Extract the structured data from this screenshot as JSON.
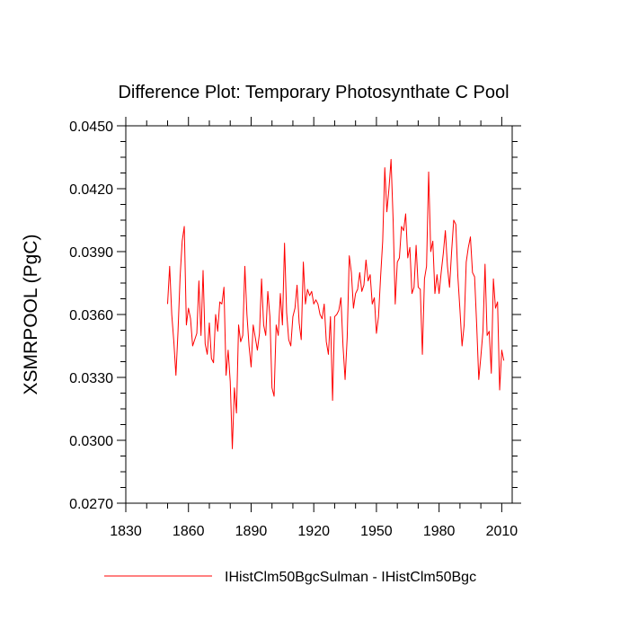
{
  "chart_data": {
    "type": "line",
    "title": "Difference Plot: Temporary Photosynthate C Pool",
    "xlabel": "",
    "ylabel": "XSMRPOOL  (PgC)",
    "xlim": [
      1830,
      2015
    ],
    "ylim": [
      0.027,
      0.045
    ],
    "xticks": [
      1830,
      1860,
      1890,
      1920,
      1950,
      1980,
      2010
    ],
    "xtick_labels": [
      "1830",
      "1860",
      "1890",
      "1920",
      "1950",
      "1980",
      "2010"
    ],
    "yticks": [
      0.027,
      0.03,
      0.033,
      0.036,
      0.039,
      0.042,
      0.045
    ],
    "ytick_labels": [
      "0.0270",
      "0.0300",
      "0.0330",
      "0.0360",
      "0.0390",
      "0.0420",
      "0.0450"
    ],
    "grid": false,
    "legend_position": "bottom",
    "series": [
      {
        "name": "IHistClm50BgcSulman - IHistClm50Bgc",
        "color": "#ff0000",
        "x": [
          1850,
          1851,
          1852,
          1853,
          1854,
          1855,
          1856,
          1857,
          1858,
          1859,
          1860,
          1861,
          1862,
          1863,
          1864,
          1865,
          1866,
          1867,
          1868,
          1869,
          1870,
          1871,
          1872,
          1873,
          1874,
          1875,
          1876,
          1877,
          1878,
          1879,
          1880,
          1881,
          1882,
          1883,
          1884,
          1885,
          1886,
          1887,
          1888,
          1889,
          1890,
          1891,
          1892,
          1893,
          1894,
          1895,
          1896,
          1897,
          1898,
          1899,
          1900,
          1901,
          1902,
          1903,
          1904,
          1905,
          1906,
          1907,
          1908,
          1909,
          1910,
          1911,
          1912,
          1913,
          1914,
          1915,
          1916,
          1917,
          1918,
          1919,
          1920,
          1921,
          1922,
          1923,
          1924,
          1925,
          1926,
          1927,
          1928,
          1929,
          1930,
          1931,
          1932,
          1933,
          1934,
          1935,
          1936,
          1937,
          1938,
          1939,
          1940,
          1941,
          1942,
          1943,
          1944,
          1945,
          1946,
          1947,
          1948,
          1949,
          1950,
          1951,
          1952,
          1953,
          1954,
          1955,
          1956,
          1957,
          1958,
          1959,
          1960,
          1961,
          1962,
          1963,
          1964,
          1965,
          1966,
          1967,
          1968,
          1969,
          1970,
          1971,
          1972,
          1973,
          1974,
          1975,
          1976,
          1977,
          1978,
          1979,
          1980,
          1981,
          1982,
          1983,
          1984,
          1985,
          1986,
          1987,
          1988,
          1989,
          1990,
          1991,
          1992,
          1993,
          1994,
          1995,
          1996,
          1997,
          1998,
          1999,
          2000,
          2001,
          2002,
          2003,
          2004,
          2005,
          2006,
          2007,
          2008,
          2009,
          2010,
          2011
        ],
        "values": [
          0.0365,
          0.0383,
          0.036,
          0.0347,
          0.0331,
          0.0352,
          0.0378,
          0.0395,
          0.0402,
          0.0355,
          0.0363,
          0.0358,
          0.0345,
          0.0348,
          0.0351,
          0.0376,
          0.035,
          0.0381,
          0.0346,
          0.0341,
          0.0356,
          0.0339,
          0.0337,
          0.036,
          0.0352,
          0.0366,
          0.0365,
          0.0373,
          0.0331,
          0.0343,
          0.0328,
          0.0296,
          0.0325,
          0.0313,
          0.0355,
          0.0347,
          0.035,
          0.0383,
          0.036,
          0.0345,
          0.0335,
          0.0355,
          0.0349,
          0.0343,
          0.0351,
          0.0377,
          0.0355,
          0.035,
          0.0371,
          0.0359,
          0.0325,
          0.0321,
          0.0355,
          0.035,
          0.037,
          0.0355,
          0.0394,
          0.0361,
          0.0348,
          0.0345,
          0.0359,
          0.0363,
          0.0374,
          0.0356,
          0.0348,
          0.0385,
          0.0365,
          0.0372,
          0.0369,
          0.0371,
          0.0365,
          0.0367,
          0.0365,
          0.036,
          0.0358,
          0.0365,
          0.0347,
          0.0341,
          0.0359,
          0.0319,
          0.0359,
          0.036,
          0.0362,
          0.0368,
          0.0345,
          0.0329,
          0.0349,
          0.0388,
          0.038,
          0.0363,
          0.037,
          0.0372,
          0.038,
          0.0371,
          0.0374,
          0.0386,
          0.0376,
          0.0379,
          0.0365,
          0.0368,
          0.0351,
          0.0359,
          0.0378,
          0.0395,
          0.043,
          0.0409,
          0.042,
          0.0434,
          0.0405,
          0.0365,
          0.0385,
          0.0387,
          0.0402,
          0.04,
          0.0408,
          0.0387,
          0.0392,
          0.037,
          0.0373,
          0.0393,
          0.0373,
          0.0372,
          0.0341,
          0.0377,
          0.0383,
          0.0428,
          0.039,
          0.0395,
          0.037,
          0.0379,
          0.037,
          0.038,
          0.0389,
          0.04,
          0.0383,
          0.0373,
          0.039,
          0.0405,
          0.0403,
          0.0378,
          0.0362,
          0.0345,
          0.0355,
          0.0385,
          0.0392,
          0.0397,
          0.038,
          0.0378,
          0.0355,
          0.0329,
          0.034,
          0.0352,
          0.0384,
          0.035,
          0.0352,
          0.0332,
          0.0377,
          0.0363,
          0.0366,
          0.0324,
          0.0343,
          0.0338
        ]
      }
    ]
  }
}
